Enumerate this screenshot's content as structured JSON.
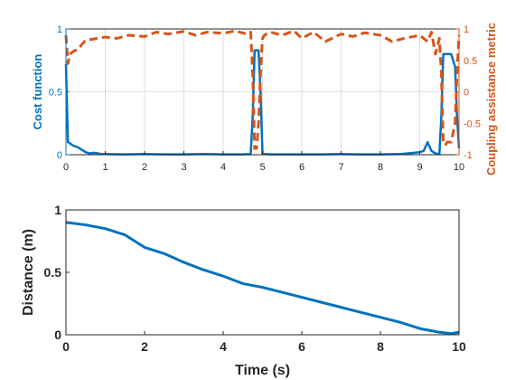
{
  "chart_data": [
    {
      "type": "line",
      "x_ticks": [
        "0",
        "1",
        "2",
        "3",
        "4",
        "5",
        "6",
        "7",
        "8",
        "9",
        "10"
      ],
      "xlim": [
        0,
        10
      ],
      "xlabel": "",
      "ylabel_left": "Cost function",
      "ylabel_right": "Coupling assistance metric",
      "yticks_left": [
        "0",
        "0.5",
        "1"
      ],
      "yticks_right": [
        "-1",
        "-0.5",
        "0",
        "0.5",
        "1"
      ],
      "ylim_left": [
        0,
        1
      ],
      "ylim_right": [
        -1,
        1
      ],
      "grid": true,
      "colors": {
        "left": "#0072BD",
        "right": "#D95319"
      },
      "series": [
        {
          "axis": "left",
          "style": "solid",
          "x": [
            0,
            0.05,
            0.1,
            0.2,
            0.3,
            0.4,
            0.5,
            0.6,
            0.7,
            0.8,
            0.9,
            1.0,
            1.5,
            2,
            2.5,
            3,
            3.5,
            4,
            4.5,
            4.7,
            4.75,
            4.8,
            4.9,
            4.95,
            5.0,
            5.05,
            5.2,
            5.5,
            6,
            6.5,
            7,
            7.5,
            8,
            8.5,
            9,
            9.1,
            9.2,
            9.3,
            9.4,
            9.5,
            9.55,
            9.6,
            9.65,
            9.7,
            9.8,
            9.9,
            9.95,
            10.0
          ],
          "y": [
            0.72,
            0.1,
            0.09,
            0.07,
            0.06,
            0.04,
            0.02,
            0.01,
            0.015,
            0.012,
            0.005,
            0.005,
            0.003,
            0.005,
            0.003,
            0.003,
            0.005,
            0.003,
            0.003,
            0.005,
            0.3,
            0.83,
            0.83,
            0.5,
            0.01,
            0.005,
            0.003,
            0.003,
            0.003,
            0.003,
            0.005,
            0.003,
            0.003,
            0.005,
            0.02,
            0.03,
            0.1,
            0.03,
            0.01,
            0.005,
            0.3,
            0.8,
            0.8,
            0.8,
            0.8,
            0.7,
            0.3,
            0.05
          ]
        },
        {
          "axis": "right",
          "style": "dashed",
          "x": [
            0,
            0.05,
            0.1,
            0.2,
            0.3,
            0.4,
            0.5,
            0.7,
            1.0,
            1.3,
            1.6,
            2.0,
            2.3,
            2.6,
            3.0,
            3.3,
            3.6,
            4.0,
            4.3,
            4.6,
            4.7,
            4.75,
            4.8,
            4.85,
            4.9,
            4.95,
            5.0,
            5.05,
            5.1,
            5.2,
            5.5,
            5.8,
            6.0,
            6.3,
            6.6,
            7.0,
            7.3,
            7.6,
            8.0,
            8.3,
            8.6,
            9.0,
            9.2,
            9.3,
            9.4,
            9.5,
            9.55,
            9.6,
            9.65,
            9.7,
            9.8,
            9.9,
            9.95,
            10.0
          ],
          "y": [
            0.9,
            0.45,
            0.6,
            0.65,
            0.67,
            0.75,
            0.82,
            0.84,
            0.87,
            0.85,
            0.9,
            0.88,
            0.95,
            0.92,
            0.96,
            0.9,
            0.95,
            0.93,
            0.97,
            0.92,
            0.95,
            0.3,
            -0.9,
            -0.9,
            -0.5,
            0.3,
            0.85,
            0.9,
            0.92,
            0.95,
            0.9,
            0.97,
            0.85,
            0.95,
            0.8,
            0.92,
            0.88,
            0.94,
            0.9,
            0.8,
            0.85,
            0.9,
            0.8,
            0.95,
            0.6,
            0.85,
            0.3,
            -0.8,
            -0.85,
            -0.8,
            -0.8,
            -0.5,
            0.3,
            0.9
          ]
        }
      ]
    },
    {
      "type": "line",
      "x_ticks": [
        "0",
        "2",
        "4",
        "6",
        "8",
        "10"
      ],
      "xlim": [
        0,
        10
      ],
      "xlabel": "Time (s)",
      "ylabel": "Distance (m)",
      "yticks": [
        "0",
        "0.5",
        "1"
      ],
      "ylim": [
        0,
        1
      ],
      "grid": false,
      "colors": {
        "line": "#0072BD"
      },
      "series": [
        {
          "style": "solid",
          "x": [
            0,
            0.5,
            1,
            1.5,
            2,
            2.5,
            3,
            3.5,
            4,
            4.5,
            5,
            5.5,
            6,
            6.5,
            7,
            7.5,
            8,
            8.5,
            9,
            9.5,
            9.8,
            10
          ],
          "y": [
            0.9,
            0.88,
            0.85,
            0.8,
            0.7,
            0.65,
            0.58,
            0.52,
            0.47,
            0.41,
            0.38,
            0.34,
            0.3,
            0.26,
            0.22,
            0.18,
            0.14,
            0.1,
            0.05,
            0.02,
            0.01,
            0.02
          ]
        }
      ]
    }
  ]
}
